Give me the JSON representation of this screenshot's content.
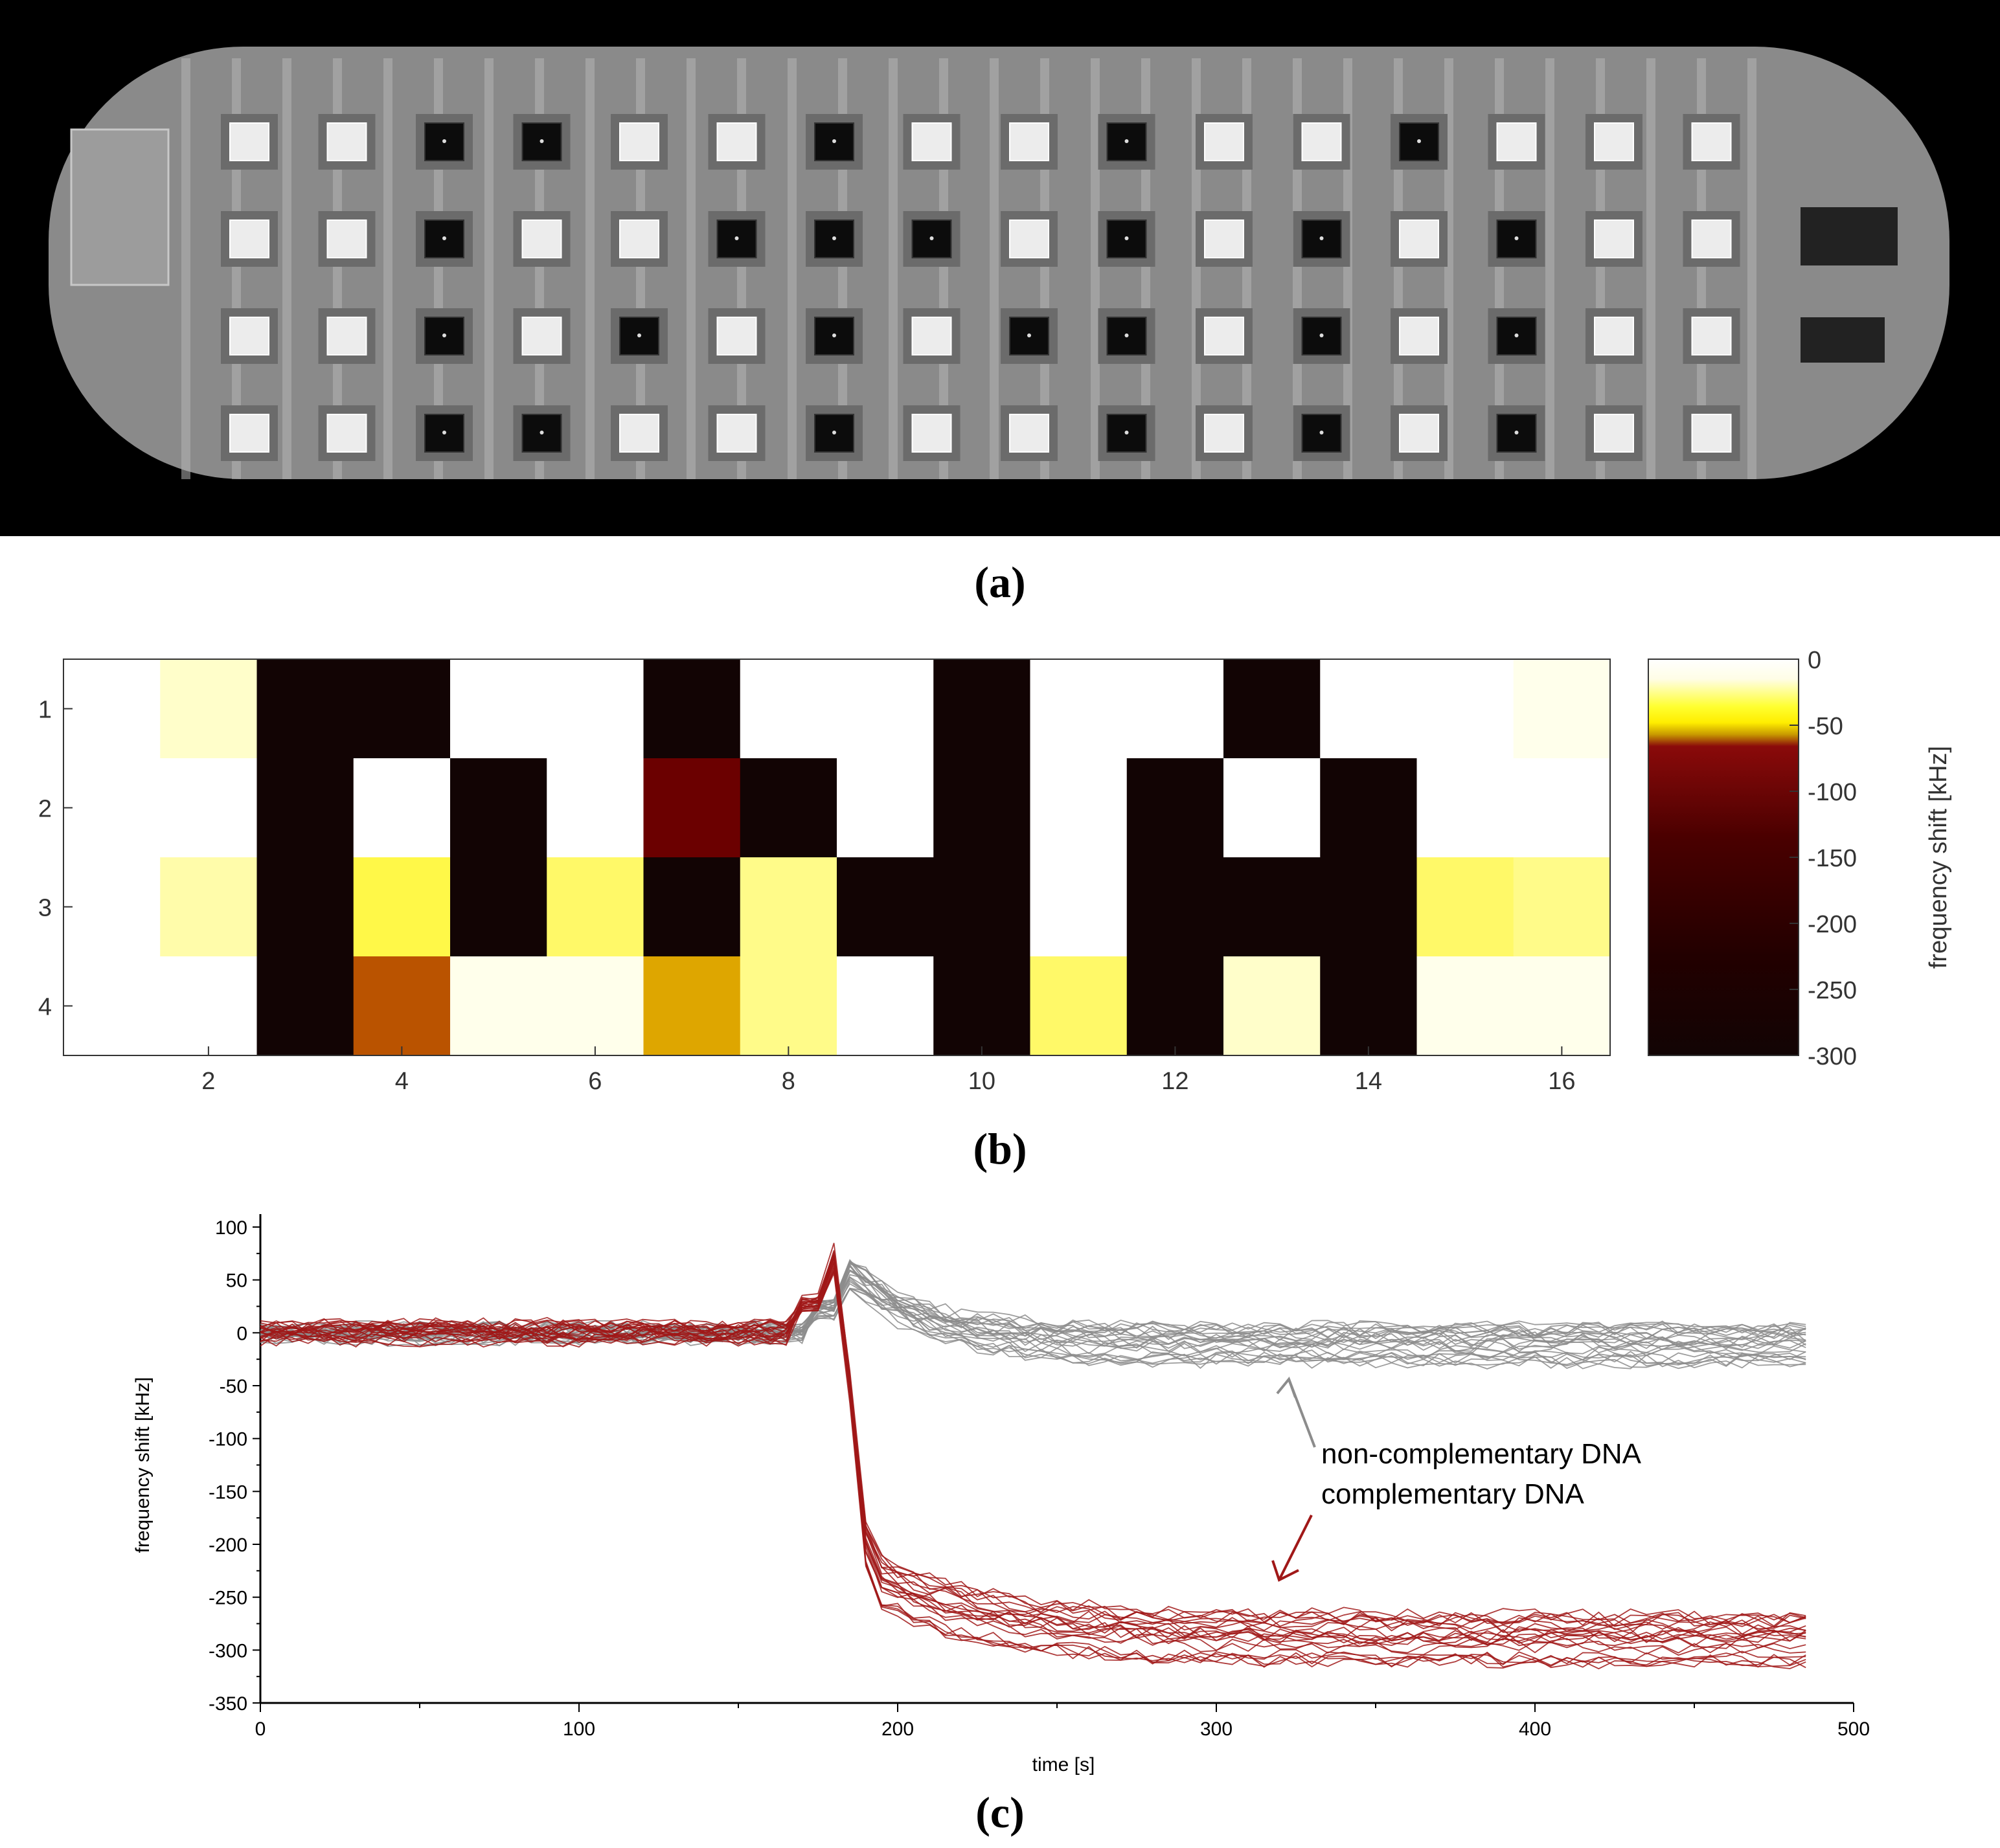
{
  "panels": {
    "a_label": "(a)",
    "b_label": "(b)",
    "c_label": "(c)"
  },
  "colors": {
    "complementary": "#a01818",
    "non_complementary": "#8c8c8c",
    "black": "#000000"
  },
  "photo": {
    "description_icon": "chip-micrograph-icon",
    "grid_dark": [
      [
        0,
        0,
        1,
        1,
        0,
        0,
        1,
        0,
        0,
        1,
        0,
        0,
        1,
        0,
        0,
        0
      ],
      [
        0,
        0,
        1,
        0,
        0,
        1,
        1,
        1,
        0,
        1,
        0,
        1,
        0,
        1,
        0,
        0
      ],
      [
        0,
        0,
        1,
        0,
        1,
        0,
        1,
        0,
        1,
        1,
        0,
        1,
        0,
        1,
        0,
        0
      ],
      [
        0,
        0,
        1,
        1,
        0,
        0,
        1,
        0,
        0,
        1,
        0,
        1,
        0,
        1,
        0,
        0
      ]
    ]
  },
  "chart_data": [
    {
      "type": "heatmap",
      "title": "",
      "rows": [
        1,
        2,
        3,
        4
      ],
      "cols": [
        1,
        2,
        3,
        4,
        5,
        6,
        7,
        8,
        9,
        10,
        11,
        12,
        13,
        14,
        15,
        16
      ],
      "x_ticks": [
        "2",
        "4",
        "6",
        "8",
        "10",
        "12",
        "14",
        "16"
      ],
      "y_ticks": [
        "1",
        "2",
        "3",
        "4"
      ],
      "values": [
        [
          0,
          -20,
          -300,
          -300,
          0,
          -10,
          -300,
          0,
          0,
          -300,
          0,
          0,
          -300,
          0,
          0,
          -15
        ],
        [
          0,
          0,
          -300,
          -10,
          -300,
          -5,
          -110,
          -300,
          -5,
          -280,
          0,
          -300,
          0,
          -300,
          0,
          0
        ],
        [
          0,
          -25,
          -300,
          -40,
          -300,
          -35,
          -300,
          -30,
          -300,
          -280,
          -10,
          -300,
          -300,
          -300,
          -35,
          -30
        ],
        [
          0,
          0,
          -300,
          -90,
          -15,
          -15,
          -70,
          -30,
          0,
          -300,
          -35,
          -300,
          -20,
          -300,
          -15,
          -15
        ]
      ],
      "zlim": [
        -300,
        0
      ],
      "colorbar_label": "frequency shift [kHz]",
      "colorbar_ticks": [
        "0",
        "-50",
        "-100",
        "-150",
        "-200",
        "-250",
        "-300"
      ],
      "colorbar_tick_values": [
        0,
        -50,
        -100,
        -150,
        -200,
        -250,
        -300
      ]
    },
    {
      "type": "line",
      "xlabel": "time [s]",
      "ylabel": "frequency shift [kHz]",
      "xlim": [
        0,
        500
      ],
      "ylim": [
        -350,
        110
      ],
      "x_ticks": [
        0,
        100,
        200,
        300,
        400,
        500
      ],
      "y_ticks": [
        100,
        50,
        0,
        -50,
        -100,
        -150,
        -200,
        -250,
        -300,
        -350
      ],
      "x_tick_labels": [
        "0",
        "100",
        "200",
        "300",
        "400",
        "500"
      ],
      "y_tick_labels": [
        "100",
        "50",
        "0",
        "-50",
        "-100",
        "-150",
        "-200",
        "-250",
        "-300",
        "-350"
      ],
      "series": [
        {
          "name": "non-complementary DNA",
          "count": 24,
          "baseline": 0,
          "spike_time": 181,
          "spike_peak": 55,
          "final": -10,
          "spread": 15
        },
        {
          "name": "complementary DNA",
          "count": 22,
          "baseline": 0,
          "spike_time": 176,
          "spike_peak": 70,
          "final": -290,
          "spread": 20
        }
      ],
      "annotations": [
        {
          "text": "non-complementary DNA",
          "points_to": "non-complementary DNA"
        },
        {
          "text": "complementary DNA",
          "points_to": "complementary DNA"
        }
      ]
    }
  ]
}
